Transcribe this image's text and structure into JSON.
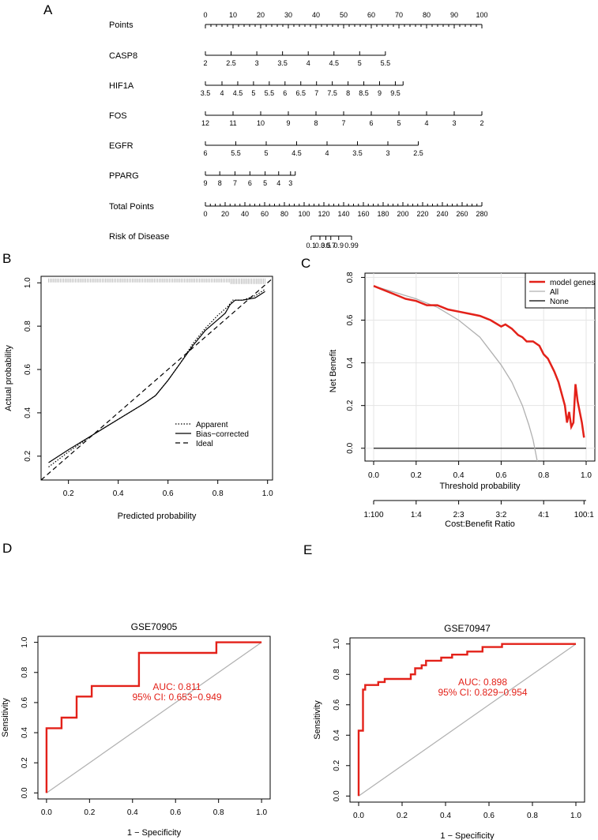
{
  "panels": {
    "A": "A",
    "B": "B",
    "C": "C",
    "D": "D",
    "E": "E"
  },
  "chart_data": [
    {
      "panel": "A",
      "type": "nomogram",
      "rows": [
        {
          "label": "Points",
          "range": [
            0,
            100
          ],
          "labels": [
            "0",
            "10",
            "20",
            "30",
            "40",
            "50",
            "60",
            "70",
            "80",
            "90",
            "100"
          ],
          "positions": [
            0,
            10,
            20,
            30,
            40,
            50,
            60,
            70,
            80,
            90,
            100
          ],
          "minor_step": 2
        },
        {
          "label": "CASP8",
          "labels": [
            "2",
            "2.5",
            "3",
            "3.5",
            "4",
            "4.5",
            "5",
            "5.5"
          ],
          "positions": [
            0,
            9.3,
            18.6,
            27.9,
            37.2,
            46.5,
            55.8,
            65.1
          ]
        },
        {
          "label": "HIF1A",
          "labels": [
            "3.5",
            "4",
            "4.5",
            "5",
            "5.5",
            "6",
            "6.5",
            "7",
            "7.5",
            "8",
            "8.5",
            "9",
            "9.5"
          ],
          "positions": [
            0,
            6.0,
            11.7,
            17.4,
            23.1,
            28.8,
            34.5,
            40.2,
            45.9,
            51.6,
            57.3,
            63.0,
            68.7
          ],
          "line_end": 71.5
        },
        {
          "label": "FOS",
          "labels": [
            "12",
            "11",
            "10",
            "9",
            "8",
            "7",
            "6",
            "5",
            "4",
            "3",
            "2"
          ],
          "positions": [
            0,
            10,
            20,
            30,
            40,
            50,
            60,
            70,
            80,
            90,
            100
          ]
        },
        {
          "label": "EGFR",
          "labels": [
            "6",
            "5.5",
            "5",
            "4.5",
            "4",
            "3.5",
            "3",
            "2.5"
          ],
          "positions": [
            0,
            11,
            22,
            33,
            44,
            55,
            66,
            77
          ]
        },
        {
          "label": "PPARG",
          "labels": [
            "9",
            "8",
            "7",
            "6",
            "5",
            "4",
            "3"
          ],
          "positions": [
            0,
            5.2,
            10.7,
            16.1,
            21.6,
            26.5,
            30.8
          ],
          "line_end": 32.5
        },
        {
          "label": "Total Points",
          "range": [
            0,
            280
          ],
          "labels": [
            "0",
            "20",
            "40",
            "60",
            "80",
            "100",
            "120",
            "140",
            "160",
            "180",
            "200",
            "220",
            "240",
            "260",
            "280"
          ],
          "step": 20,
          "minor_step": 5
        },
        {
          "label": "Risk of Disease",
          "labels": [
            "0.1",
            "0.3",
            "0.5",
            "0.7",
            "0.9",
            "0.99"
          ],
          "total_points_at": [
            107,
            116,
            122,
            127,
            135,
            148
          ],
          "line_range": [
            107,
            148
          ]
        }
      ]
    },
    {
      "panel": "B",
      "type": "line",
      "title": "",
      "xlabel": "Predicted probability",
      "ylabel": "Actual probability",
      "xlim": [
        0.09,
        1.02
      ],
      "ylim": [
        0.09,
        1.03
      ],
      "xticks": [
        0.2,
        0.4,
        0.6,
        0.8,
        1.0
      ],
      "xtick_labels": [
        "0.2",
        "0.4",
        "0.6",
        "0.8",
        "1.0"
      ],
      "yticks": [
        0.2,
        0.4,
        0.6,
        0.8,
        1.0
      ],
      "ytick_labels": [
        "0.2",
        "0.4",
        "0.6",
        "0.8",
        "1.0"
      ],
      "legend": [
        "Apparent",
        "Bias−corrected",
        "Ideal"
      ],
      "series": [
        {
          "name": "Apparent",
          "style": "dotted",
          "x": [
            0.12,
            0.2,
            0.3,
            0.4,
            0.5,
            0.55,
            0.6,
            0.65,
            0.7,
            0.75,
            0.8,
            0.84,
            0.86,
            0.9,
            0.95,
            0.99
          ],
          "y": [
            0.15,
            0.22,
            0.3,
            0.37,
            0.44,
            0.48,
            0.55,
            0.63,
            0.72,
            0.79,
            0.85,
            0.89,
            0.92,
            0.92,
            0.94,
            0.97
          ]
        },
        {
          "name": "Bias−corrected",
          "style": "solid",
          "x": [
            0.12,
            0.2,
            0.3,
            0.4,
            0.5,
            0.55,
            0.6,
            0.65,
            0.7,
            0.75,
            0.8,
            0.83,
            0.85,
            0.87,
            0.9,
            0.95,
            0.99
          ],
          "y": [
            0.17,
            0.23,
            0.3,
            0.37,
            0.44,
            0.48,
            0.55,
            0.63,
            0.71,
            0.78,
            0.83,
            0.86,
            0.9,
            0.92,
            0.92,
            0.93,
            0.96
          ]
        },
        {
          "name": "Ideal",
          "style": "dashed",
          "x": [
            0.09,
            1.02
          ],
          "y": [
            0.09,
            1.02
          ]
        }
      ],
      "rug_y": 1.02
    },
    {
      "panel": "C",
      "type": "line",
      "xlabel": "Threshold probability",
      "ylabel": "Net Benefit",
      "xlim": [
        0,
        1
      ],
      "ylim": [
        -0.06,
        0.82
      ],
      "xticks": [
        0,
        0.2,
        0.4,
        0.6,
        0.8,
        1.0
      ],
      "xtick_labels": [
        "0.0",
        "0.2",
        "0.4",
        "0.6",
        "0.8",
        "1.0"
      ],
      "yticks": [
        0,
        0.2,
        0.4,
        0.6,
        0.8
      ],
      "ytick_labels": [
        "0.0",
        "0.2",
        "0.4",
        "0.6",
        "0.8"
      ],
      "ratio_axis": {
        "title": "Cost:Benefit Ratio",
        "labels": [
          "1:100",
          "1:4",
          "2:3",
          "3:2",
          "4:1",
          "100:1"
        ],
        "positions": [
          0,
          0.2,
          0.4,
          0.6,
          0.8,
          0.99
        ]
      },
      "legend": [
        "model genes",
        "All",
        "None"
      ],
      "series": [
        {
          "name": "model genes",
          "color": "#e32119",
          "x": [
            0,
            0.05,
            0.1,
            0.15,
            0.2,
            0.25,
            0.3,
            0.35,
            0.4,
            0.45,
            0.5,
            0.55,
            0.6,
            0.62,
            0.65,
            0.68,
            0.7,
            0.72,
            0.75,
            0.78,
            0.8,
            0.82,
            0.85,
            0.87,
            0.9,
            0.91,
            0.92,
            0.93,
            0.94,
            0.95,
            0.96,
            0.98,
            0.99
          ],
          "y": [
            0.76,
            0.74,
            0.72,
            0.7,
            0.69,
            0.67,
            0.67,
            0.65,
            0.64,
            0.63,
            0.62,
            0.6,
            0.57,
            0.58,
            0.56,
            0.53,
            0.52,
            0.5,
            0.5,
            0.48,
            0.44,
            0.42,
            0.36,
            0.31,
            0.2,
            0.12,
            0.17,
            0.1,
            0.12,
            0.3,
            0.22,
            0.12,
            0.05
          ]
        },
        {
          "name": "All",
          "color": "#b0b0b0",
          "x": [
            0,
            0.1,
            0.2,
            0.3,
            0.4,
            0.5,
            0.6,
            0.65,
            0.7,
            0.73,
            0.75,
            0.77
          ],
          "y": [
            0.76,
            0.73,
            0.7,
            0.66,
            0.6,
            0.52,
            0.39,
            0.31,
            0.2,
            0.11,
            0.04,
            -0.06
          ]
        },
        {
          "name": "None",
          "color": "#000000",
          "x": [
            0,
            1
          ],
          "y": [
            0,
            0
          ]
        }
      ]
    },
    {
      "panel": "D",
      "type": "line",
      "title": "GSE70905",
      "xlabel": "1 − Specificity",
      "ylabel": "Sensitivity",
      "xlim": [
        -0.04,
        1.04
      ],
      "ylim": [
        -0.04,
        1.04
      ],
      "xticks": [
        0,
        0.2,
        0.4,
        0.6,
        0.8,
        1.0
      ],
      "xtick_labels": [
        "0.0",
        "0.2",
        "0.4",
        "0.6",
        "0.8",
        "1.0"
      ],
      "yticks": [
        0,
        0.2,
        0.4,
        0.6,
        0.8,
        1.0
      ],
      "ytick_labels": [
        "0.0",
        "0.2",
        "0.4",
        "0.6",
        "0.8",
        "1.0"
      ],
      "auc_text": "AUC: 0.811",
      "ci_text": "95% CI: 0.653−0.949",
      "series": [
        {
          "name": "ROC",
          "color": "#e32119",
          "x": [
            0,
            0,
            0.07,
            0.07,
            0.14,
            0.14,
            0.21,
            0.21,
            0.43,
            0.43,
            0.79,
            0.79,
            1.0
          ],
          "y": [
            0,
            0.43,
            0.43,
            0.5,
            0.5,
            0.64,
            0.64,
            0.71,
            0.71,
            0.93,
            0.93,
            1.0,
            1.0
          ]
        },
        {
          "name": "Reference",
          "color": "#b0b0b0",
          "x": [
            0,
            1
          ],
          "y": [
            0,
            1
          ]
        }
      ]
    },
    {
      "panel": "E",
      "type": "line",
      "title": "GSE70947",
      "xlabel": "1 − Specificity",
      "ylabel": "Sensitivity",
      "xlim": [
        -0.04,
        1.04
      ],
      "ylim": [
        -0.04,
        1.04
      ],
      "xticks": [
        0,
        0.2,
        0.4,
        0.6,
        0.8,
        1.0
      ],
      "xtick_labels": [
        "0.0",
        "0.2",
        "0.4",
        "0.6",
        "0.8",
        "1.0"
      ],
      "yticks": [
        0,
        0.2,
        0.4,
        0.6,
        0.8,
        1.0
      ],
      "ytick_labels": [
        "0.0",
        "0.2",
        "0.4",
        "0.6",
        "0.8",
        "1.0"
      ],
      "auc_text": "AUC: 0.898",
      "ci_text": "95% CI: 0.829−0.954",
      "series": [
        {
          "name": "ROC",
          "color": "#e32119",
          "x": [
            0,
            0,
            0.02,
            0.02,
            0.03,
            0.03,
            0.06,
            0.06,
            0.09,
            0.09,
            0.12,
            0.12,
            0.14,
            0.14,
            0.24,
            0.24,
            0.26,
            0.26,
            0.29,
            0.29,
            0.31,
            0.31,
            0.34,
            0.34,
            0.38,
            0.38,
            0.43,
            0.43,
            0.5,
            0.5,
            0.57,
            0.57,
            0.66,
            0.66,
            1.0
          ],
          "y": [
            0,
            0.43,
            0.43,
            0.7,
            0.7,
            0.73,
            0.73,
            0.73,
            0.73,
            0.75,
            0.75,
            0.77,
            0.77,
            0.77,
            0.77,
            0.8,
            0.8,
            0.84,
            0.84,
            0.86,
            0.86,
            0.89,
            0.89,
            0.89,
            0.89,
            0.91,
            0.91,
            0.93,
            0.93,
            0.95,
            0.95,
            0.98,
            0.98,
            1.0,
            1.0
          ]
        },
        {
          "name": "Reference",
          "color": "#b0b0b0",
          "x": [
            0,
            1
          ],
          "y": [
            0,
            1
          ]
        }
      ]
    }
  ]
}
